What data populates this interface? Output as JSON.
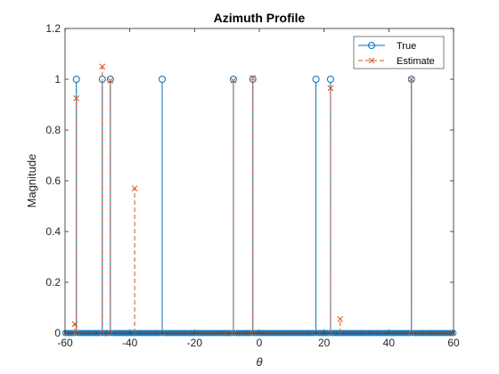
{
  "chart_data": {
    "type": "stem",
    "title": "Azimuth Profile",
    "xlabel": "θ",
    "ylabel": "Magnitude",
    "xlim": [
      -60,
      60
    ],
    "ylim": [
      0,
      1.2
    ],
    "xticks": [
      "-60",
      "-40",
      "-20",
      "0",
      "20",
      "40",
      "60"
    ],
    "yticks": [
      "0",
      "0.2",
      "0.4",
      "0.6",
      "0.8",
      "1",
      "1.2"
    ],
    "grid": false,
    "legend_position": "top-right",
    "grid_step": 0.5,
    "series": [
      {
        "name": "True",
        "color": "#0072BD",
        "marker": "circle",
        "line_style": "solid",
        "x": [
          -56.5,
          -48.5,
          -46,
          -30,
          -8,
          -2,
          17.5,
          22,
          47
        ],
        "values": [
          1,
          1,
          1,
          1,
          1,
          1,
          1,
          1,
          1
        ]
      },
      {
        "name": "Estimate",
        "color": "#D95319",
        "marker": "x",
        "line_style": "dashed",
        "x": [
          -57,
          -56.5,
          -48.5,
          -46,
          -38.5,
          -8,
          -2,
          22,
          25,
          47
        ],
        "values": [
          0.035,
          0.925,
          1.05,
          0.995,
          0.57,
          0.995,
          1.005,
          0.965,
          0.055,
          1.0
        ]
      }
    ]
  }
}
